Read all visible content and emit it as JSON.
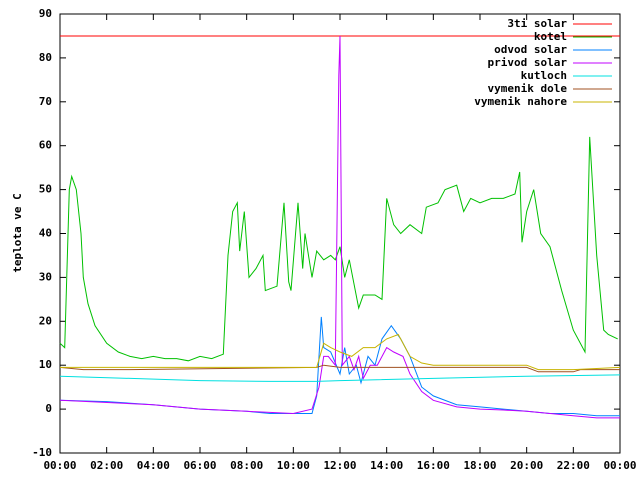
{
  "chart_data": {
    "type": "line",
    "y_label": "teplota ve C",
    "xlim": [
      0,
      24
    ],
    "xticks": [
      {
        "value": 0,
        "label": "00:00"
      },
      {
        "value": 2,
        "label": "02:00"
      },
      {
        "value": 4,
        "label": "04:00"
      },
      {
        "value": 6,
        "label": "06:00"
      },
      {
        "value": 8,
        "label": "08:00"
      },
      {
        "value": 10,
        "label": "10:00"
      },
      {
        "value": 12,
        "label": "12:00"
      },
      {
        "value": 14,
        "label": "14:00"
      },
      {
        "value": 16,
        "label": "16:00"
      },
      {
        "value": 18,
        "label": "18:00"
      },
      {
        "value": 20,
        "label": "20:00"
      },
      {
        "value": 22,
        "label": "22:00"
      },
      {
        "value": 24,
        "label": "00:00"
      }
    ],
    "ylim": [
      -10,
      90
    ],
    "yticks": [
      -10,
      0,
      10,
      20,
      30,
      40,
      50,
      60,
      70,
      80,
      90
    ],
    "grid": false,
    "legend": "top-right",
    "series": [
      {
        "name": "3ti solar",
        "color": "#ff0000",
        "x": [
          0,
          24
        ],
        "values": [
          85,
          85
        ]
      },
      {
        "name": "kotel",
        "color": "#00c000",
        "x": [
          0,
          0.2,
          0.4,
          0.5,
          0.7,
          0.9,
          1.0,
          1.2,
          1.5,
          2,
          2.5,
          3,
          3.5,
          4,
          4.5,
          5,
          5.5,
          6,
          6.5,
          7,
          7.2,
          7.4,
          7.6,
          7.7,
          7.9,
          8.1,
          8.4,
          8.7,
          8.8,
          9.3,
          9.6,
          9.8,
          9.9,
          10.2,
          10.4,
          10.5,
          10.8,
          11.0,
          11.3,
          11.6,
          11.8,
          12.0,
          12.2,
          12.4,
          12.8,
          13.0,
          13.5,
          13.8,
          14.0,
          14.3,
          14.6,
          15.0,
          15.5,
          15.7,
          16.2,
          16.5,
          17.0,
          17.3,
          17.6,
          18.0,
          18.5,
          19.0,
          19.5,
          19.7,
          19.8,
          20.0,
          20.3,
          20.6,
          21.0,
          21.5,
          22.0,
          22.5,
          22.7,
          23.0,
          23.3,
          23.5,
          23.9
        ],
        "values": [
          15,
          14,
          50,
          53,
          50,
          40,
          30,
          24,
          19,
          15,
          13,
          12,
          11.5,
          12,
          11.5,
          11.5,
          11,
          12,
          11.5,
          12.5,
          35,
          45,
          47,
          36,
          45,
          30,
          32,
          35,
          27,
          28,
          47,
          29,
          27,
          47,
          32,
          40,
          30,
          36,
          34,
          35,
          34,
          37,
          30,
          34,
          23,
          26,
          26,
          25,
          48,
          42,
          40,
          42,
          40,
          46,
          47,
          50,
          51,
          45,
          48,
          47,
          48,
          48,
          49,
          54,
          38,
          45,
          50,
          40,
          37,
          27,
          18,
          13,
          62,
          35,
          18,
          17,
          16
        ]
      },
      {
        "name": "odvod solar",
        "color": "#0080ff",
        "x": [
          0,
          2,
          4,
          6,
          8,
          9,
          10,
          10.8,
          11.0,
          11.2,
          11.3,
          11.6,
          12,
          12.2,
          12.4,
          12.7,
          12.9,
          13.2,
          13.5,
          13.8,
          14.2,
          14.6,
          15,
          15.5,
          16,
          17,
          18,
          19,
          20,
          21,
          22,
          23,
          24
        ],
        "values": [
          2,
          1.7,
          1,
          0,
          -0.5,
          -1,
          -1,
          -1,
          3,
          21,
          14,
          13,
          8,
          14,
          8,
          10,
          6,
          12,
          10,
          16,
          19,
          16,
          12,
          5,
          3,
          1,
          0.5,
          0,
          -0.5,
          -1,
          -1,
          -1.5,
          -1.5
        ]
      },
      {
        "name": "privod solar",
        "color": "#c000ff",
        "x": [
          0,
          4,
          6,
          8,
          10,
          10.8,
          11.1,
          11.3,
          11.5,
          11.8,
          11.95,
          12.0,
          12.1,
          12.4,
          12.6,
          12.8,
          13,
          13.3,
          13.6,
          14,
          14.3,
          14.7,
          15,
          15.5,
          16,
          17,
          18,
          19,
          20,
          21,
          22,
          23,
          24
        ],
        "values": [
          2,
          1,
          0,
          -0.5,
          -1,
          0,
          5,
          12,
          12,
          10,
          76,
          85,
          10,
          12,
          9,
          12,
          7,
          10,
          10,
          14,
          13,
          12,
          8,
          4,
          2,
          0.5,
          0,
          -0.2,
          -0.5,
          -1,
          -1.5,
          -2,
          -2
        ]
      },
      {
        "name": "kutloch",
        "color": "#00e0e0",
        "x": [
          0,
          6,
          9,
          11,
          12,
          16,
          20,
          24
        ],
        "values": [
          7.5,
          6.5,
          6.3,
          6.3,
          6.5,
          7,
          7.5,
          7.8
        ]
      },
      {
        "name": "vymenik dole",
        "color": "#a05020",
        "x": [
          0,
          1,
          3,
          11,
          11.3,
          12,
          15,
          18,
          20,
          20.5,
          22,
          22.3,
          24
        ],
        "values": [
          9.5,
          9,
          9,
          9.5,
          10,
          9.5,
          9.5,
          9.5,
          9.5,
          8.5,
          8.5,
          9,
          9
        ]
      },
      {
        "name": "vymenik nahore",
        "color": "#c8b400",
        "x": [
          0,
          11,
          11.3,
          11.6,
          12,
          12.5,
          13,
          13.5,
          14,
          14.5,
          15,
          15.5,
          16,
          20,
          20.5,
          22,
          24
        ],
        "values": [
          9.5,
          9.5,
          15,
          14,
          13,
          12,
          14,
          14,
          16,
          17,
          12,
          10.5,
          10,
          10,
          9,
          9,
          9.5
        ]
      }
    ]
  }
}
